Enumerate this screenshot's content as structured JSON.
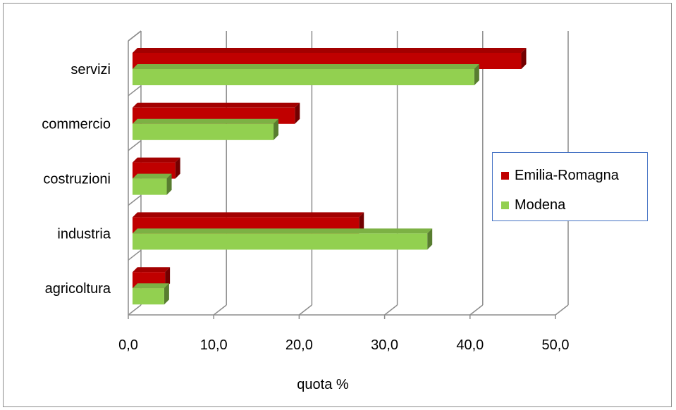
{
  "chart_data": {
    "type": "bar",
    "orientation": "horizontal",
    "categories": [
      "servizi",
      "commercio",
      "costruzioni",
      "industria",
      "agricoltura"
    ],
    "series": [
      {
        "name": "Emilia-Romagna",
        "color": "#c00000",
        "values": [
          46.0,
          19.5,
          5.5,
          27.0,
          4.3
        ]
      },
      {
        "name": "Modena",
        "color": "#92d050",
        "values": [
          40.5,
          17.0,
          4.5,
          35.0,
          4.2
        ]
      }
    ],
    "xlabel": "quota %",
    "ylabel": "",
    "xlim": [
      0,
      50
    ],
    "xticks": [
      "0,0",
      "10,0",
      "20,0",
      "30,0",
      "40,0",
      "50,0"
    ],
    "grid": true,
    "legend_position": "right"
  }
}
